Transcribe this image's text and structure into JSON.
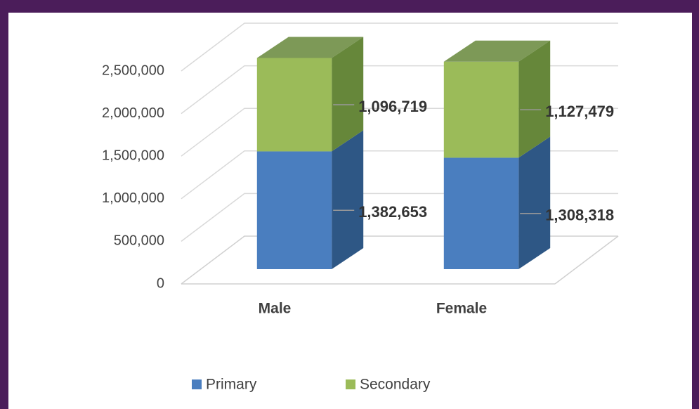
{
  "chart_data": {
    "type": "bar3d_stacked",
    "categories": [
      "Male",
      "Female"
    ],
    "series": [
      {
        "name": "Primary",
        "color": "#4a7ebf",
        "side_color": "#2e5785",
        "values": [
          1382653,
          1308318
        ],
        "value_labels": [
          "1,382,653",
          "1,308,318"
        ]
      },
      {
        "name": "Secondary",
        "color": "#9bbb59",
        "side_color": "#66873a",
        "values": [
          1096719,
          1127479
        ],
        "value_labels": [
          "1,096,719",
          "1,127,479"
        ]
      }
    ],
    "ylim": [
      0,
      2500000
    ],
    "yticks": [
      {
        "value": 0,
        "label": "0"
      },
      {
        "value": 500000,
        "label": "500,000"
      },
      {
        "value": 1000000,
        "label": "1,000,000"
      },
      {
        "value": 1500000,
        "label": "1,500,000"
      },
      {
        "value": 2000000,
        "label": "2,000,000"
      },
      {
        "value": 2500000,
        "label": "2,500,000"
      }
    ],
    "grid": true,
    "legend": "bottom"
  }
}
